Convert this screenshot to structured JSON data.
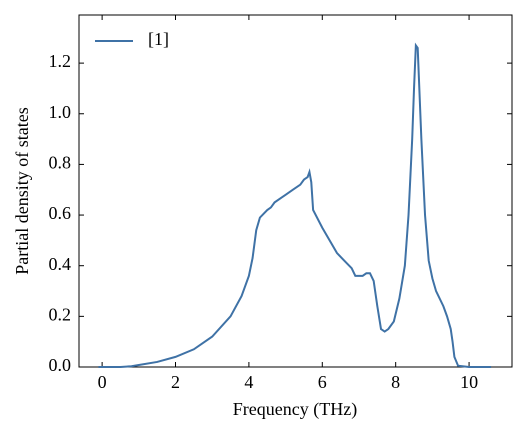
{
  "chart_data": {
    "type": "line",
    "xlabel": "Frequency (THz)",
    "ylabel": "Partial density of states",
    "xlim": [
      -0.63,
      11.17
    ],
    "ylim": [
      0,
      1.39
    ],
    "xticks": [
      0,
      2,
      4,
      6,
      8,
      10
    ],
    "yticks": [
      {
        "value": 0,
        "label": "0.0"
      },
      {
        "value": 0.2,
        "label": "0.2"
      },
      {
        "value": 0.4,
        "label": "0.4"
      },
      {
        "value": 0.6,
        "label": "0.6"
      },
      {
        "value": 0.8,
        "label": "0.8"
      },
      {
        "value": 1.0,
        "label": "1.0"
      },
      {
        "value": 1.2,
        "label": "1.2"
      }
    ],
    "legend": "upper left",
    "series": [
      {
        "name": "[1]",
        "color": "#3f72a6",
        "x": [
          -0.1,
          0.5,
          0.8,
          1.0,
          1.5,
          2.0,
          2.5,
          3.0,
          3.5,
          3.8,
          4.0,
          4.1,
          4.2,
          4.3,
          4.5,
          4.6,
          4.7,
          4.9,
          5.0,
          5.2,
          5.4,
          5.5,
          5.6,
          5.65,
          5.7,
          5.75,
          6.0,
          6.2,
          6.4,
          6.6,
          6.8,
          6.9,
          7.1,
          7.2,
          7.3,
          7.4,
          7.5,
          7.6,
          7.7,
          7.8,
          7.95,
          8.1,
          8.25,
          8.35,
          8.45,
          8.5,
          8.55,
          8.6,
          8.7,
          8.8,
          8.9,
          9.0,
          9.1,
          9.3,
          9.4,
          9.5,
          9.55,
          9.6,
          9.7,
          10.0,
          10.6
        ],
        "values": [
          0,
          0,
          0.003,
          0.008,
          0.02,
          0.04,
          0.07,
          0.12,
          0.2,
          0.28,
          0.36,
          0.43,
          0.54,
          0.59,
          0.62,
          0.63,
          0.65,
          0.67,
          0.68,
          0.7,
          0.72,
          0.74,
          0.75,
          0.77,
          0.73,
          0.62,
          0.55,
          0.5,
          0.45,
          0.42,
          0.39,
          0.36,
          0.36,
          0.37,
          0.37,
          0.34,
          0.24,
          0.15,
          0.14,
          0.15,
          0.18,
          0.27,
          0.4,
          0.6,
          0.9,
          1.1,
          1.27,
          1.26,
          0.9,
          0.6,
          0.42,
          0.35,
          0.3,
          0.24,
          0.2,
          0.15,
          0.1,
          0.04,
          0.005,
          0,
          0
        ]
      }
    ]
  }
}
